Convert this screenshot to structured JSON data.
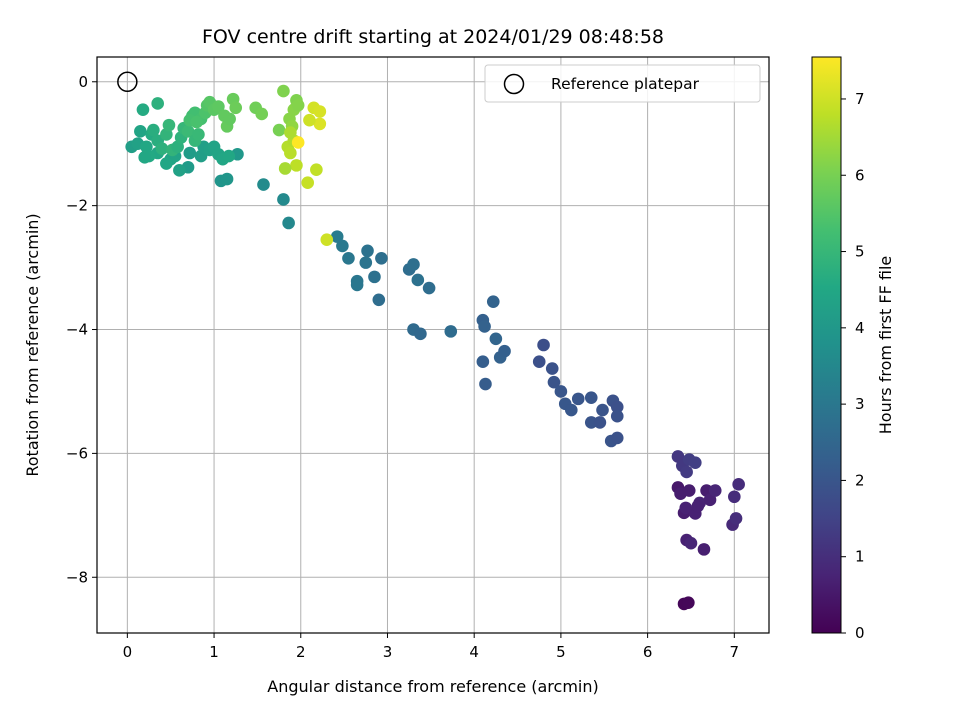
{
  "chart_data": {
    "type": "scatter",
    "title": "FOV centre drift starting at 2024/01/29 08:48:58",
    "xlabel": "Angular distance from reference (arcmin)",
    "ylabel": "Rotation from reference (arcmin)",
    "xlim": [
      -0.35,
      7.4
    ],
    "ylim": [
      -8.9,
      0.4
    ],
    "xticks": [
      0,
      1,
      2,
      3,
      4,
      5,
      6,
      7
    ],
    "yticks": [
      0,
      -2,
      -4,
      -6,
      -8
    ],
    "grid": true,
    "legend": {
      "position": "top-right",
      "entries": [
        {
          "label": "Reference platepar",
          "marker": "open-circle"
        }
      ]
    },
    "reference_point": {
      "x": 0,
      "y": 0
    },
    "colorbar": {
      "label": "Hours from first FF file",
      "colormap": "viridis",
      "range": [
        0,
        7.55
      ],
      "ticks": [
        0,
        1,
        2,
        3,
        4,
        5,
        6,
        7
      ]
    },
    "series": [
      {
        "fields": [
          "x",
          "y",
          "hours"
        ],
        "points": [
          [
            6.42,
            -8.43
          ],
          [
            6.47,
            -8.41
          ],
          [
            6.35,
            -6.55
          ],
          [
            6.38,
            -6.65
          ],
          [
            6.42,
            -6.96
          ],
          [
            6.45,
            -7.4
          ],
          [
            6.5,
            -7.45
          ],
          [
            6.55,
            -6.97
          ],
          [
            6.6,
            -6.8
          ],
          [
            6.65,
            -7.55
          ],
          [
            6.68,
            -6.6
          ],
          [
            6.72,
            -6.75
          ],
          [
            6.78,
            -6.6
          ],
          [
            6.58,
            -6.85
          ],
          [
            6.48,
            -6.6
          ],
          [
            6.44,
            -6.88
          ],
          [
            6.98,
            -7.15
          ],
          [
            7.0,
            -6.7
          ],
          [
            7.02,
            -7.05
          ],
          [
            7.05,
            -6.5
          ],
          [
            6.35,
            -6.05
          ],
          [
            6.4,
            -6.2
          ],
          [
            6.45,
            -6.3
          ],
          [
            6.48,
            -6.1
          ],
          [
            6.55,
            -6.15
          ],
          [
            4.8,
            -4.25
          ],
          [
            4.75,
            -4.52
          ],
          [
            4.9,
            -4.63
          ],
          [
            4.92,
            -4.85
          ],
          [
            5.0,
            -5.0
          ],
          [
            5.05,
            -5.2
          ],
          [
            5.12,
            -5.3
          ],
          [
            5.2,
            -5.12
          ],
          [
            5.35,
            -5.1
          ],
          [
            5.35,
            -5.5
          ],
          [
            5.45,
            -5.5
          ],
          [
            5.48,
            -5.3
          ],
          [
            5.6,
            -5.15
          ],
          [
            5.65,
            -5.25
          ],
          [
            5.65,
            -5.4
          ],
          [
            5.58,
            -5.8
          ],
          [
            5.65,
            -5.75
          ],
          [
            4.1,
            -3.85
          ],
          [
            4.12,
            -3.95
          ],
          [
            4.1,
            -4.52
          ],
          [
            4.13,
            -4.88
          ],
          [
            4.22,
            -3.55
          ],
          [
            4.25,
            -4.15
          ],
          [
            4.3,
            -4.45
          ],
          [
            4.35,
            -4.35
          ],
          [
            3.3,
            -4.0
          ],
          [
            3.38,
            -4.07
          ],
          [
            3.73,
            -4.03
          ],
          [
            3.25,
            -3.03
          ],
          [
            3.3,
            -2.95
          ],
          [
            3.35,
            -3.2
          ],
          [
            3.48,
            -3.33
          ],
          [
            2.42,
            -2.5
          ],
          [
            2.48,
            -2.65
          ],
          [
            2.55,
            -2.85
          ],
          [
            2.65,
            -3.22
          ],
          [
            2.65,
            -3.28
          ],
          [
            2.75,
            -2.92
          ],
          [
            2.77,
            -2.73
          ],
          [
            2.85,
            -3.15
          ],
          [
            2.9,
            -3.52
          ],
          [
            2.93,
            -2.85
          ],
          [
            1.57,
            -1.66
          ],
          [
            1.8,
            -1.9
          ],
          [
            1.86,
            -2.28
          ],
          [
            1.08,
            -1.6
          ],
          [
            1.15,
            -1.57
          ],
          [
            1.27,
            -1.17
          ],
          [
            0.7,
            -1.38
          ],
          [
            0.72,
            -1.15
          ],
          [
            0.85,
            -1.2
          ],
          [
            0.88,
            -1.05
          ],
          [
            0.95,
            -1.1
          ],
          [
            1.0,
            -1.05
          ],
          [
            1.05,
            -1.17
          ],
          [
            1.1,
            -1.25
          ],
          [
            1.17,
            -1.2
          ],
          [
            0.6,
            -1.43
          ],
          [
            0.55,
            -1.2
          ],
          [
            0.5,
            -1.25
          ],
          [
            0.45,
            -1.32
          ],
          [
            0.35,
            -1.15
          ],
          [
            0.25,
            -1.2
          ],
          [
            0.2,
            -1.22
          ],
          [
            0.05,
            -1.05
          ],
          [
            0.12,
            -1.0
          ],
          [
            0.15,
            -0.8
          ],
          [
            0.22,
            -1.05
          ],
          [
            0.28,
            -0.85
          ],
          [
            0.35,
            -0.95
          ],
          [
            0.4,
            -1.08
          ],
          [
            0.45,
            -0.85
          ],
          [
            0.48,
            -0.7
          ],
          [
            0.52,
            -1.1
          ],
          [
            0.58,
            -1.05
          ],
          [
            0.62,
            -0.9
          ],
          [
            0.65,
            -0.75
          ],
          [
            0.7,
            -0.8
          ],
          [
            0.78,
            -0.95
          ],
          [
            0.82,
            -0.85
          ],
          [
            0.3,
            -0.78
          ],
          [
            0.18,
            -0.45
          ],
          [
            0.35,
            -0.35
          ],
          [
            0.75,
            -0.55
          ],
          [
            0.78,
            -0.5
          ],
          [
            0.85,
            -0.6
          ],
          [
            0.9,
            -0.5
          ],
          [
            0.92,
            -0.38
          ],
          [
            0.95,
            -0.33
          ],
          [
            1.0,
            -0.45
          ],
          [
            1.05,
            -0.4
          ],
          [
            1.12,
            -0.55
          ],
          [
            1.15,
            -0.72
          ],
          [
            1.18,
            -0.6
          ],
          [
            1.22,
            -0.28
          ],
          [
            1.25,
            -0.42
          ],
          [
            0.72,
            -0.62
          ],
          [
            0.8,
            -0.65
          ],
          [
            1.48,
            -0.42
          ],
          [
            1.55,
            -0.52
          ],
          [
            1.75,
            -0.78
          ],
          [
            1.8,
            -0.15
          ],
          [
            1.87,
            -0.6
          ],
          [
            1.9,
            -0.72
          ],
          [
            1.92,
            -0.45
          ],
          [
            1.95,
            -0.3
          ],
          [
            1.97,
            -0.38
          ],
          [
            1.85,
            -1.05
          ],
          [
            1.88,
            -1.15
          ],
          [
            1.95,
            -1.35
          ],
          [
            1.92,
            -0.95
          ],
          [
            1.88,
            -0.82
          ],
          [
            1.82,
            -1.4
          ],
          [
            2.15,
            -0.42
          ],
          [
            2.22,
            -0.48
          ],
          [
            2.22,
            -0.68
          ],
          [
            2.1,
            -0.62
          ],
          [
            2.08,
            -1.63
          ],
          [
            2.18,
            -1.42
          ],
          [
            1.97,
            -0.98
          ],
          [
            2.3,
            -2.55
          ]
        ],
        "hours": [
          0.1,
          0.12,
          0.5,
          0.6,
          0.6,
          0.7,
          0.8,
          0.7,
          0.75,
          0.65,
          0.6,
          0.7,
          0.8,
          0.7,
          0.6,
          0.7,
          0.9,
          0.95,
          1.0,
          0.95,
          1.2,
          1.25,
          1.3,
          1.35,
          1.4,
          1.8,
          1.85,
          1.9,
          1.95,
          2.0,
          2.05,
          2.05,
          2.0,
          2.0,
          1.95,
          1.9,
          1.95,
          1.9,
          1.85,
          1.9,
          1.95,
          1.9,
          2.3,
          2.35,
          2.25,
          2.2,
          2.4,
          2.45,
          2.35,
          2.3,
          2.6,
          2.55,
          2.65,
          2.7,
          2.75,
          2.8,
          2.7,
          3.1,
          3.05,
          3.0,
          2.95,
          3.0,
          2.9,
          2.85,
          2.8,
          2.7,
          2.75,
          3.6,
          3.55,
          3.5,
          3.9,
          3.95,
          4.0,
          4.1,
          4.15,
          4.2,
          4.25,
          4.3,
          4.35,
          4.4,
          4.45,
          4.5,
          4.3,
          4.35,
          4.4,
          4.45,
          4.5,
          4.55,
          4.5,
          4.2,
          4.3,
          4.4,
          4.5,
          4.6,
          4.7,
          4.8,
          4.9,
          5.0,
          4.9,
          4.8,
          4.85,
          5.0,
          5.1,
          5.0,
          5.05,
          4.7,
          4.6,
          4.8,
          5.2,
          5.25,
          5.3,
          5.4,
          5.5,
          5.55,
          5.6,
          5.65,
          5.7,
          5.75,
          5.7,
          5.8,
          5.85,
          5.3,
          5.35,
          5.9,
          5.95,
          6.0,
          6.1,
          6.2,
          6.3,
          6.2,
          6.1,
          6.15,
          6.7,
          6.75,
          6.8,
          6.65,
          6.6,
          6.55,
          7.05,
          7.1,
          7.15,
          7.0,
          6.9,
          6.85,
          7.55,
          7.0
        ]
      }
    ]
  }
}
